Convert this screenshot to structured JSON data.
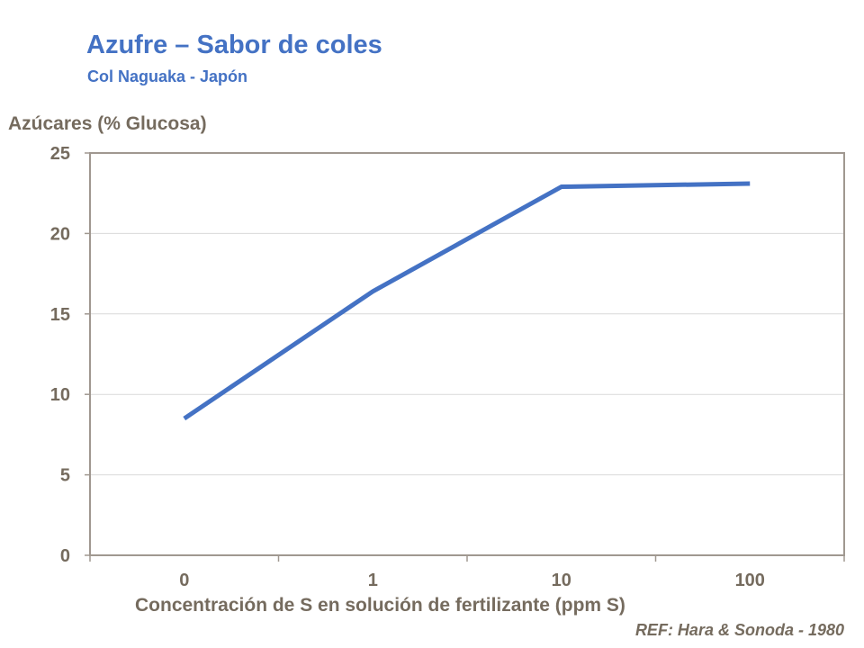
{
  "chart_data": {
    "type": "line",
    "title": "Azufre – Sabor de coles",
    "subtitle": "Col Naguaka - Japón",
    "ylabel": "Azúcares (% Glucosa)",
    "xlabel": "Concentración de S en solución de fertilizante (ppm S)",
    "reference": "REF: Hara & Sonoda - 1980",
    "categories": [
      "0",
      "1",
      "10",
      "100"
    ],
    "values": [
      8.5,
      16.4,
      22.9,
      23.1
    ],
    "ylim": [
      0,
      25
    ],
    "yticks": [
      0,
      5,
      10,
      15,
      20,
      25
    ],
    "grid": true,
    "legend": "none",
    "colors": {
      "line": "#4472c4",
      "title": "#4472c4",
      "axis": "#756b5e",
      "grid": "#d9d9d9",
      "frame": "#a09890"
    }
  }
}
